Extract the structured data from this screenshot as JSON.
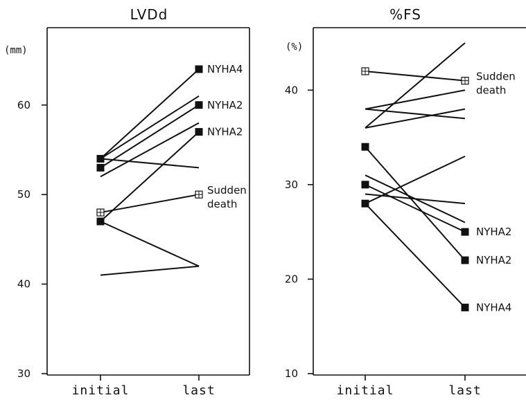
{
  "chart_data": [
    {
      "type": "line",
      "title": "LVDd",
      "unit_label": "(mm)",
      "categories": [
        "initial",
        "last"
      ],
      "ylim": [
        30,
        64
      ],
      "yticks": [
        "30",
        "40",
        "50",
        "60"
      ],
      "series": [
        {
          "values": [
            54,
            64
          ],
          "marker": "solid",
          "label": "NYHA4"
        },
        {
          "values": [
            54,
            61
          ],
          "marker": "none",
          "label": ""
        },
        {
          "values": [
            53,
            60
          ],
          "marker": "solid",
          "label": "NYHA2"
        },
        {
          "values": [
            52,
            58
          ],
          "marker": "none",
          "label": ""
        },
        {
          "values": [
            47,
            57
          ],
          "marker": "solid",
          "label": "NYHA2"
        },
        {
          "values": [
            54,
            53
          ],
          "marker": "none",
          "label": ""
        },
        {
          "values": [
            48,
            50
          ],
          "marker": "hatched",
          "label": "Sudden death"
        },
        {
          "values": [
            47,
            42
          ],
          "marker": "none",
          "label": ""
        },
        {
          "values": [
            41,
            42
          ],
          "marker": "none",
          "label": ""
        }
      ]
    },
    {
      "type": "line",
      "title": "%FS",
      "unit_label": "(%)",
      "categories": [
        "initial",
        "last"
      ],
      "ylim": [
        10,
        45
      ],
      "yticks": [
        "10",
        "20",
        "30",
        "40"
      ],
      "series": [
        {
          "values": [
            42,
            41
          ],
          "marker": "hatched",
          "label": "Sudden death"
        },
        {
          "values": [
            36,
            45
          ],
          "marker": "none",
          "label": ""
        },
        {
          "values": [
            38,
            40
          ],
          "marker": "none",
          "label": ""
        },
        {
          "values": [
            38,
            37
          ],
          "marker": "none",
          "label": ""
        },
        {
          "values": [
            36,
            38
          ],
          "marker": "none",
          "label": ""
        },
        {
          "values": [
            34,
            22
          ],
          "marker": "solid",
          "label": "NYHA2"
        },
        {
          "values": [
            31,
            26
          ],
          "marker": "none",
          "label": ""
        },
        {
          "values": [
            30,
            25
          ],
          "marker": "solid",
          "label": "NYHA2"
        },
        {
          "values": [
            29,
            28
          ],
          "marker": "none",
          "label": ""
        },
        {
          "values": [
            28,
            33
          ],
          "marker": "none",
          "label": ""
        },
        {
          "values": [
            28,
            17
          ],
          "marker": "solid",
          "label": "NYHA4"
        }
      ]
    }
  ]
}
